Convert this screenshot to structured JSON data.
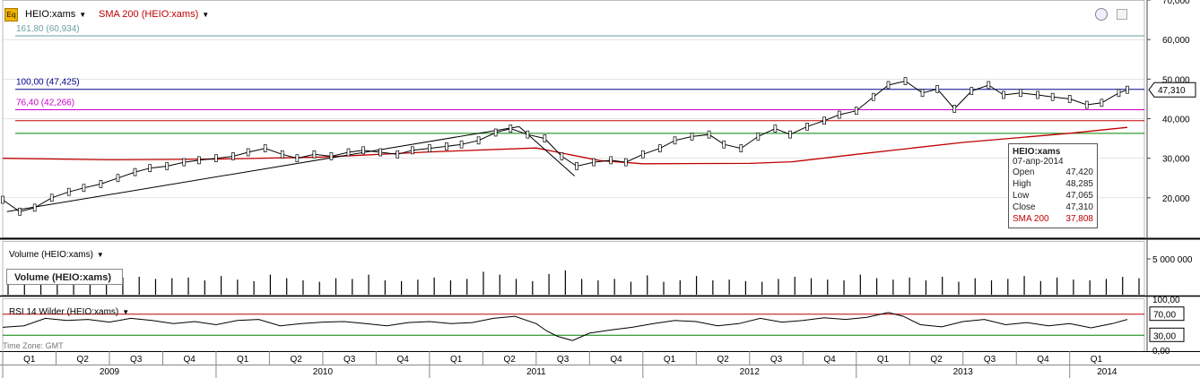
{
  "toolbar": {
    "icon_label": "Eq",
    "symbol_label": "HEIO:xams",
    "sma_label": "SMA 200 (HEIO:xams)"
  },
  "colors": {
    "price": "#000000",
    "sma": "#c00000",
    "fib_161": "#6aa0a0",
    "fib_100": "#00008b",
    "fib_764": "#cc00cc",
    "green_line": "#008000",
    "rsi_bands": "#c00000",
    "grid": "#c8c8c8"
  },
  "chart_data": {
    "type": "line",
    "main": {
      "y_axis_ticks": [
        "70,000",
        "60,000",
        "50,000",
        "40,000",
        "30,000",
        "20,000"
      ],
      "ylim": [
        10000,
        70000
      ],
      "time_range": [
        2009.0,
        2014.35
      ],
      "levels": [
        {
          "label": "161,80 (60,934)",
          "value": 60934,
          "color": "#6aa0a0"
        },
        {
          "label": "100,00 (47,425)",
          "value": 47425,
          "color": "#00008b"
        },
        {
          "label": "76,40 (42,266)",
          "value": 42266,
          "color": "#cc00cc"
        },
        {
          "label": "",
          "value": 39500,
          "color": "#c00000"
        },
        {
          "label": "",
          "value": 36300,
          "color": "#008000"
        }
      ],
      "last_price_label": "47,310",
      "price": [
        [
          2009.0,
          19500
        ],
        [
          2009.08,
          16500
        ],
        [
          2009.15,
          17500
        ],
        [
          2009.23,
          20000
        ],
        [
          2009.31,
          21500
        ],
        [
          2009.38,
          22500
        ],
        [
          2009.46,
          23500
        ],
        [
          2009.54,
          25000
        ],
        [
          2009.62,
          26500
        ],
        [
          2009.69,
          27500
        ],
        [
          2009.77,
          28000
        ],
        [
          2009.85,
          29000
        ],
        [
          2009.92,
          29500
        ],
        [
          2010.0,
          30000
        ],
        [
          2010.08,
          30500
        ],
        [
          2010.15,
          31500
        ],
        [
          2010.23,
          32500
        ],
        [
          2010.31,
          31000
        ],
        [
          2010.38,
          30000
        ],
        [
          2010.46,
          31000
        ],
        [
          2010.54,
          30500
        ],
        [
          2010.62,
          31500
        ],
        [
          2010.69,
          32000
        ],
        [
          2010.77,
          31500
        ],
        [
          2010.85,
          31000
        ],
        [
          2010.92,
          32000
        ],
        [
          2011.0,
          32500
        ],
        [
          2011.08,
          33000
        ],
        [
          2011.15,
          33500
        ],
        [
          2011.23,
          34500
        ],
        [
          2011.31,
          36500
        ],
        [
          2011.38,
          37500
        ],
        [
          2011.46,
          36000
        ],
        [
          2011.54,
          35000
        ],
        [
          2011.62,
          30500
        ],
        [
          2011.69,
          28000
        ],
        [
          2011.77,
          29000
        ],
        [
          2011.85,
          29500
        ],
        [
          2011.92,
          29000
        ],
        [
          2012.0,
          31000
        ],
        [
          2012.08,
          32500
        ],
        [
          2012.15,
          34500
        ],
        [
          2012.23,
          35500
        ],
        [
          2012.31,
          36000
        ],
        [
          2012.38,
          33500
        ],
        [
          2012.46,
          32500
        ],
        [
          2012.54,
          35500
        ],
        [
          2012.62,
          37500
        ],
        [
          2012.69,
          36000
        ],
        [
          2012.77,
          38000
        ],
        [
          2012.85,
          39500
        ],
        [
          2012.92,
          41000
        ],
        [
          2013.0,
          42000
        ],
        [
          2013.08,
          45500
        ],
        [
          2013.15,
          48500
        ],
        [
          2013.23,
          49500
        ],
        [
          2013.31,
          46500
        ],
        [
          2013.38,
          47500
        ],
        [
          2013.46,
          42500
        ],
        [
          2013.54,
          47000
        ],
        [
          2013.62,
          48500
        ],
        [
          2013.69,
          46000
        ],
        [
          2013.77,
          46500
        ],
        [
          2013.85,
          46000
        ],
        [
          2013.92,
          45500
        ],
        [
          2014.0,
          45000
        ],
        [
          2014.08,
          43500
        ],
        [
          2014.15,
          44000
        ],
        [
          2014.23,
          46500
        ],
        [
          2014.27,
          47310
        ]
      ],
      "sma": [
        [
          2009.0,
          30000
        ],
        [
          2009.5,
          29600
        ],
        [
          2010.0,
          29800
        ],
        [
          2010.5,
          30300
        ],
        [
          2011.0,
          31600
        ],
        [
          2011.5,
          32600
        ],
        [
          2011.8,
          29400
        ],
        [
          2012.0,
          28600
        ],
        [
          2012.5,
          28700
        ],
        [
          2012.7,
          29100
        ],
        [
          2013.0,
          31000
        ],
        [
          2013.5,
          34000
        ],
        [
          2014.0,
          36300
        ],
        [
          2014.27,
          37808
        ]
      ],
      "trendlines": [
        {
          "points": [
            [
              2009.02,
              16500
            ],
            [
              2011.42,
              38000
            ]
          ]
        },
        {
          "points": [
            [
              2011.42,
              38000
            ],
            [
              2011.68,
              25500
            ]
          ]
        }
      ]
    },
    "volume": {
      "y_axis_ticks": [
        "5 000 000"
      ],
      "ylim": [
        0,
        7500000
      ],
      "values": [
        2200000,
        2600000,
        2800000,
        2500000,
        2300000,
        2700000,
        2600000,
        2400000,
        2500000,
        2200000,
        2300000,
        2400000,
        2000000,
        2600000,
        2100000,
        1900000,
        2800000,
        2300000,
        2000000,
        1800000,
        2300000,
        2200000,
        2800000,
        2000000,
        1900000,
        2100000,
        2400000,
        2000000,
        2200000,
        3200000,
        2800000,
        2200000,
        1900000,
        2900000,
        3400000,
        2200000,
        2000000,
        2200000,
        1800000,
        2700000,
        1800000,
        2000000,
        2600000,
        2000000,
        2100000,
        1900000,
        1800000,
        2200000,
        2500000,
        2300000,
        2100000,
        2000000,
        2800000,
        2300000,
        2100000,
        2400000,
        2000000,
        2500000,
        1800000,
        2300000,
        2000000,
        2200000,
        2600000,
        1900000,
        2400000,
        2100000,
        2000000,
        2200000,
        2500000,
        2300000
      ]
    },
    "rsi": {
      "title": "RSI 14 Wilder (HEIO:xams)",
      "ylim": [
        0,
        100
      ],
      "y_axis_ticks": [
        "100,00",
        "0,00"
      ],
      "bands": [
        {
          "label": "70,00",
          "value": 70
        },
        {
          "label": "30,00",
          "value": 30
        }
      ],
      "values": [
        [
          2009.0,
          45
        ],
        [
          2009.1,
          48
        ],
        [
          2009.2,
          62
        ],
        [
          2009.3,
          58
        ],
        [
          2009.4,
          60
        ],
        [
          2009.5,
          55
        ],
        [
          2009.6,
          62
        ],
        [
          2009.7,
          58
        ],
        [
          2009.8,
          52
        ],
        [
          2009.9,
          56
        ],
        [
          2010.0,
          50
        ],
        [
          2010.1,
          58
        ],
        [
          2010.2,
          60
        ],
        [
          2010.3,
          48
        ],
        [
          2010.4,
          52
        ],
        [
          2010.5,
          55
        ],
        [
          2010.6,
          56
        ],
        [
          2010.7,
          52
        ],
        [
          2010.8,
          48
        ],
        [
          2010.9,
          54
        ],
        [
          2011.0,
          56
        ],
        [
          2011.1,
          52
        ],
        [
          2011.2,
          54
        ],
        [
          2011.3,
          62
        ],
        [
          2011.4,
          66
        ],
        [
          2011.5,
          52
        ],
        [
          2011.55,
          38
        ],
        [
          2011.6,
          28
        ],
        [
          2011.67,
          20
        ],
        [
          2011.75,
          34
        ],
        [
          2011.85,
          40
        ],
        [
          2011.95,
          45
        ],
        [
          2012.05,
          52
        ],
        [
          2012.15,
          58
        ],
        [
          2012.25,
          56
        ],
        [
          2012.35,
          48
        ],
        [
          2012.45,
          52
        ],
        [
          2012.55,
          62
        ],
        [
          2012.65,
          55
        ],
        [
          2012.75,
          58
        ],
        [
          2012.85,
          63
        ],
        [
          2012.95,
          60
        ],
        [
          2013.05,
          64
        ],
        [
          2013.15,
          73
        ],
        [
          2013.22,
          66
        ],
        [
          2013.3,
          50
        ],
        [
          2013.4,
          46
        ],
        [
          2013.5,
          56
        ],
        [
          2013.6,
          60
        ],
        [
          2013.7,
          50
        ],
        [
          2013.8,
          54
        ],
        [
          2013.9,
          48
        ],
        [
          2014.0,
          52
        ],
        [
          2014.1,
          44
        ],
        [
          2014.2,
          52
        ],
        [
          2014.27,
          60
        ]
      ]
    },
    "x_axis": {
      "quarters": [
        "Q1",
        "Q2",
        "Q3",
        "Q4",
        "Q1",
        "Q2",
        "Q3",
        "Q4",
        "Q1",
        "Q2",
        "Q3",
        "Q4",
        "Q1",
        "Q2",
        "Q3",
        "Q4",
        "Q1",
        "Q2",
        "Q3",
        "Q4",
        "Q1"
      ],
      "years": [
        "2009",
        "2010",
        "2011",
        "2012",
        "2013",
        "2014"
      ]
    }
  },
  "panes": {
    "volume_title": "Volume (HEIO:xams)",
    "volume_box_label": "Volume (HEIO:xams)",
    "rsi_title": "RSI 14 Wilder (HEIO:xams)",
    "timezone": "Time Zone: GMT"
  },
  "infobox": {
    "title": "HEIO:xams",
    "date": "07-апр-2014",
    "rows": [
      {
        "label": "Open",
        "value": "47,420"
      },
      {
        "label": "High",
        "value": "48,285"
      },
      {
        "label": "Low",
        "value": "47,065"
      },
      {
        "label": "Close",
        "value": "47,310"
      }
    ],
    "sma_label": "SMA 200",
    "sma_value": "37,808"
  }
}
